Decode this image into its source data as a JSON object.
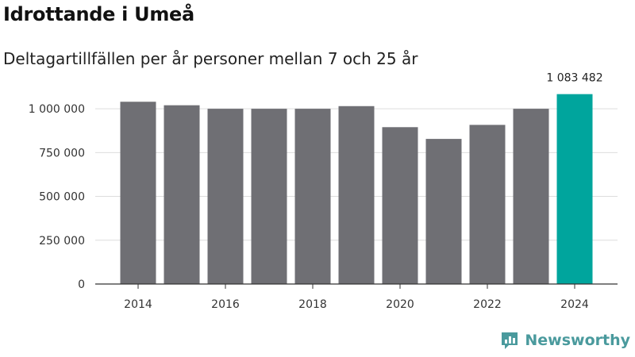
{
  "chart_data": {
    "type": "bar",
    "title": "Idrottande i Umeå",
    "subtitle": "Deltagartillfällen per år personer mellan 7 och 25 år",
    "xlabel": "",
    "ylabel": "",
    "categories": [
      "2014",
      "2015",
      "2016",
      "2017",
      "2018",
      "2019",
      "2020",
      "2021",
      "2022",
      "2023",
      "2024"
    ],
    "values": [
      1040000,
      1020000,
      1000000,
      1000000,
      1000000,
      1015000,
      895000,
      828000,
      908000,
      1000000,
      1083482
    ],
    "ylim": [
      0,
      1100000
    ],
    "yticks": [
      0,
      250000,
      500000,
      750000,
      1000000
    ],
    "ytick_labels": [
      "0",
      "250 000",
      "500 000",
      "750 000",
      "1 000 000"
    ],
    "xtick_labels": [
      "2014",
      "2016",
      "2018",
      "2020",
      "2022",
      "2024"
    ],
    "annotations": [
      {
        "category": "2024",
        "text": "1 083 482"
      }
    ],
    "highlight_category": "2024",
    "colors": {
      "bar": "#6f6f74",
      "highlight": "#00a59d",
      "grid": "#dddddd",
      "axis": "#333333"
    },
    "grid": true,
    "legend": "none"
  },
  "branding": {
    "name": "Newsworthy",
    "icon": "newsworthy-logo-icon",
    "color": "#4a9a9d"
  }
}
